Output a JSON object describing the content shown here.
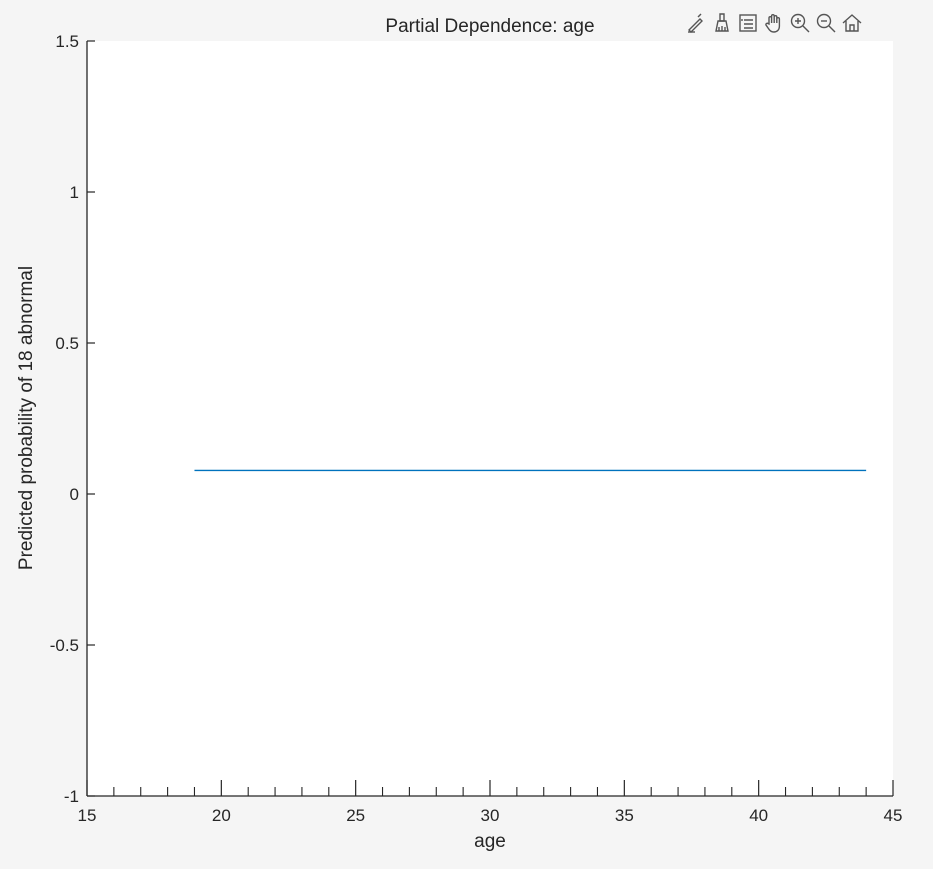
{
  "chart_data": {
    "type": "line",
    "title": "Partial Dependence: age",
    "xlabel": "age",
    "ylabel": "Predicted probability of 18 abnormal",
    "xlim": [
      15,
      45
    ],
    "ylim": [
      -1,
      1.5
    ],
    "x_ticks": [
      "15",
      "20",
      "25",
      "30",
      "35",
      "40",
      "45"
    ],
    "y_ticks": [
      "-1",
      "-0.5",
      "0",
      "0.5",
      "1",
      "1.5"
    ],
    "x_minor_step": 1,
    "grid": false,
    "series": [
      {
        "x": [
          19,
          44
        ],
        "y": [
          0.078,
          0.078
        ],
        "color": "#0072bd"
      }
    ]
  },
  "toolbar": {
    "icons": [
      "edit-icon",
      "brush-icon",
      "legend-icon",
      "pan-icon",
      "zoom-in-icon",
      "zoom-out-icon",
      "home-icon"
    ]
  },
  "colors": {
    "axes_background": "#ffffff",
    "figure_background": "#f5f5f5",
    "line": "#0072bd"
  }
}
